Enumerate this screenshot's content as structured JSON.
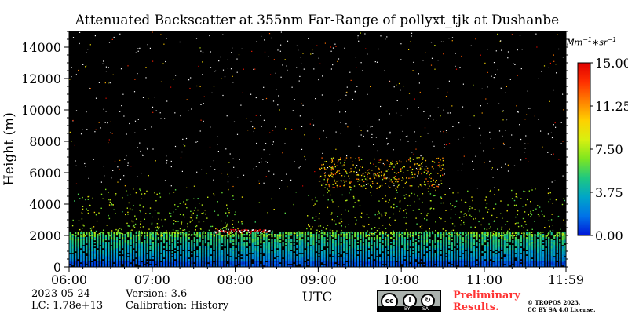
{
  "chart_data": {
    "type": "heatmap",
    "title": "Attenuated Backscatter at 355nm Far-Range of pollyxt_tjk at Dushanbe",
    "xlabel": "UTC",
    "ylabel": "Height (m)",
    "x_ticks": [
      "06:00",
      "07:00",
      "08:00",
      "09:00",
      "10:00",
      "11:00",
      "11:59"
    ],
    "x_range": [
      "06:00",
      "11:59"
    ],
    "y_ticks": [
      0,
      2000,
      4000,
      6000,
      8000,
      10000,
      12000,
      14000
    ],
    "y_range": [
      0,
      15000
    ],
    "colorbar": {
      "unit": "Mm",
      "unit_exp1": "−1",
      "unit_mid": "∗sr",
      "unit_exp2": "−1",
      "ticks": [
        "0.00",
        "3.75",
        "7.50",
        "11.25",
        "15.00"
      ],
      "range": [
        0,
        15
      ],
      "colormap": [
        "#0015d8",
        "#0072e8",
        "#00a5c8",
        "#1fc880",
        "#7ee620",
        "#d8f010",
        "#ffd000",
        "#ff8000",
        "#ff3000",
        "#e00000"
      ]
    },
    "background_color": "#000000",
    "features": [
      {
        "name": "boundary layer aerosol",
        "from": "06:00",
        "to": "11:59",
        "height_top": 2200,
        "value": 4.5
      },
      {
        "name": "elevated aerosol",
        "from": "06:00",
        "to": "11:59",
        "height_bottom": 2000,
        "height_top": 5000,
        "value": 7.5
      },
      {
        "name": "cloud near 2000 m",
        "from": "07:45",
        "to": "08:25",
        "height": 2300,
        "value": 15
      },
      {
        "name": "elevated layer near 6500 m",
        "from": "09:00",
        "to": "10:30",
        "height_bottom": 5000,
        "height_top": 7000,
        "value": 10
      }
    ]
  },
  "footer": {
    "date": "2023-05-24",
    "lc": "LC: 1.78e+13",
    "version": "Version: 3.6",
    "calibration": "Calibration: History",
    "license_badge": [
      "cc",
      "BY",
      "SA"
    ],
    "preliminary_line1": "Preliminary",
    "preliminary_line2": "Results.",
    "copyright_line1": "© TROPOS 2023.",
    "copyright_line2": "CC BY SA 4.0 License."
  }
}
